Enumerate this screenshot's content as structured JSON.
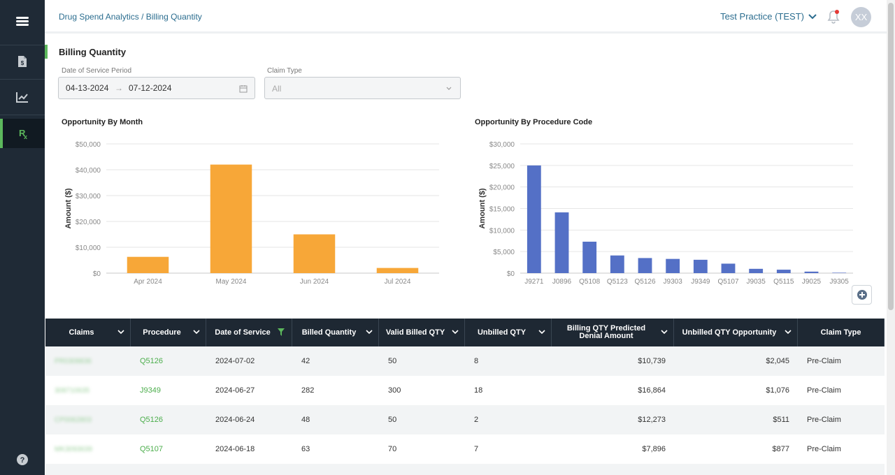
{
  "header": {
    "breadcrumb": "Drug Spend Analytics / Billing Quantity",
    "practice": "Test Practice (TEST)",
    "avatar": "XX"
  },
  "sidebar": {
    "items": [
      {
        "icon": "menu-icon"
      },
      {
        "icon": "invoice-icon"
      },
      {
        "icon": "line-chart-icon"
      },
      {
        "icon": "rx-icon",
        "active": true
      },
      {
        "icon": "help-icon"
      }
    ]
  },
  "page": {
    "title": "Billing Quantity"
  },
  "filters": {
    "date_label": "Date of Service Period",
    "date_start": "04-13-2024",
    "date_end": "07-12-2024",
    "claim_type_label": "Claim Type",
    "claim_type_value": "All"
  },
  "charts": {
    "month_title": "Opportunity By Month",
    "code_title": "Opportunity By Procedure Code"
  },
  "chart_data": [
    {
      "type": "bar",
      "title": "Opportunity By Month",
      "ylabel": "Amount ($)",
      "categories": [
        "Apr 2024",
        "May 2024",
        "Jun 2024",
        "Jul 2024"
      ],
      "values": [
        6300,
        42000,
        15000,
        2000
      ],
      "ylim": [
        0,
        50000
      ],
      "yticks": [
        "$0",
        "$10,000",
        "$20,000",
        "$30,000",
        "$40,000",
        "$50,000"
      ],
      "color": "#f7a738",
      "grid": true
    },
    {
      "type": "bar",
      "title": "Opportunity By Procedure Code",
      "ylabel": "Amount ($)",
      "categories": [
        "J9271",
        "J0896",
        "Q5108",
        "Q5123",
        "Q5126",
        "J9303",
        "J9349",
        "Q5107",
        "J9035",
        "Q5115",
        "J9025",
        "J9305"
      ],
      "values": [
        25000,
        14100,
        7300,
        4100,
        3500,
        3300,
        3100,
        2200,
        1000,
        800,
        350,
        100
      ],
      "ylim": [
        0,
        30000
      ],
      "yticks": [
        "$0",
        "$5,000",
        "$10,000",
        "$15,000",
        "$20,000",
        "$25,000",
        "$30,000"
      ],
      "color": "#5470c6",
      "grid": true
    }
  ],
  "table": {
    "columns": [
      "Claims",
      "Procedure",
      "Date of Service",
      "Billed Quantity",
      "Valid Billed QTY",
      "Unbilled QTY",
      "Billing QTY Predicted Denial Amount",
      "Unbilled QTY Opportunity",
      "Claim Type"
    ],
    "rows": [
      {
        "claim": "PR0308836",
        "procedure": "Q5126",
        "date": "2024-07-02",
        "billed": "42",
        "valid": "50",
        "unbilled": "8",
        "denial": "$10,739",
        "opportunity": "$2,045",
        "type": "Pre-Claim"
      },
      {
        "claim": "308710635",
        "procedure": "J9349",
        "date": "2024-06-27",
        "billed": "282",
        "valid": "300",
        "unbilled": "18",
        "denial": "$16,864",
        "opportunity": "$1,076",
        "type": "Pre-Claim"
      },
      {
        "claim": "CP0062803",
        "procedure": "Q5126",
        "date": "2024-06-24",
        "billed": "48",
        "valid": "50",
        "unbilled": "2",
        "denial": "$12,273",
        "opportunity": "$511",
        "type": "Pre-Claim"
      },
      {
        "claim": "MK3093639",
        "procedure": "Q5107",
        "date": "2024-06-18",
        "billed": "63",
        "valid": "70",
        "unbilled": "7",
        "denial": "$7,896",
        "opportunity": "$877",
        "type": "Pre-Claim"
      }
    ]
  },
  "colors": {
    "accent": "#5cb85c",
    "link": "#2b6d8f",
    "sidebar": "#1f2a36",
    "header_row": "#1e2833"
  }
}
